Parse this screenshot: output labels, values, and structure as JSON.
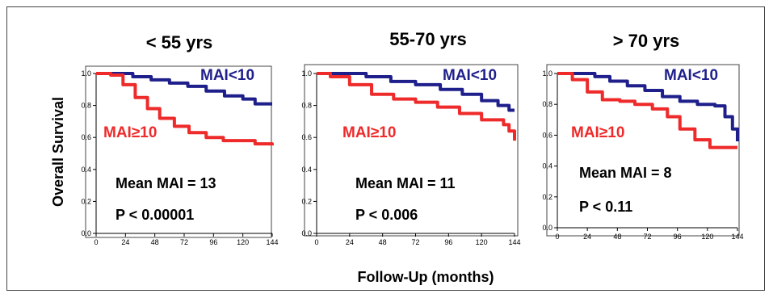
{
  "colors": {
    "mai_lt10": "#1f1f8c",
    "mai_ge10": "#ee2a2a",
    "axis": "#000000",
    "frame": "#444444"
  },
  "ylabel": "Overall Survival",
  "xlabel": "Follow-Up (months)",
  "chart_data": [
    {
      "type": "line",
      "title": "< 55 yrs",
      "xlim": [
        0,
        144
      ],
      "ylim": [
        0.0,
        1.0
      ],
      "x_ticks": [
        "0",
        "24",
        "48",
        "72",
        "96",
        "120",
        "144"
      ],
      "y_ticks": [
        "0.0",
        "0.2",
        "0.4",
        "0.6",
        "0.8",
        "1.0"
      ],
      "series": [
        {
          "name": "MAI<10",
          "color": "#1f1f8c",
          "points": [
            [
              0,
              1.0
            ],
            [
              18,
              1.0
            ],
            [
              30,
              0.98
            ],
            [
              45,
              0.96
            ],
            [
              60,
              0.94
            ],
            [
              75,
              0.92
            ],
            [
              90,
              0.89
            ],
            [
              105,
              0.86
            ],
            [
              120,
              0.84
            ],
            [
              130,
              0.81
            ],
            [
              144,
              0.81
            ]
          ]
        },
        {
          "name": "MAI≥10",
          "color": "#ee2a2a",
          "points": [
            [
              0,
              1.0
            ],
            [
              12,
              0.99
            ],
            [
              22,
              0.93
            ],
            [
              32,
              0.85
            ],
            [
              42,
              0.78
            ],
            [
              52,
              0.72
            ],
            [
              64,
              0.67
            ],
            [
              76,
              0.63
            ],
            [
              90,
              0.6
            ],
            [
              104,
              0.58
            ],
            [
              120,
              0.58
            ],
            [
              130,
              0.56
            ],
            [
              144,
              0.55
            ]
          ]
        }
      ],
      "annotations": [
        "Mean MAI = 13",
        "P < 0.00001"
      ]
    },
    {
      "type": "line",
      "title": "55-70 yrs",
      "xlim": [
        0,
        144
      ],
      "ylim": [
        0.0,
        1.0
      ],
      "x_ticks": [
        "0",
        "24",
        "48",
        "72",
        "96",
        "120",
        "144"
      ],
      "y_ticks": [
        "0.0",
        "0.2",
        "0.4",
        "0.6",
        "0.8",
        "1.0"
      ],
      "series": [
        {
          "name": "MAI<10",
          "color": "#1f1f8c",
          "points": [
            [
              0,
              1.0
            ],
            [
              20,
              1.0
            ],
            [
              36,
              0.98
            ],
            [
              54,
              0.95
            ],
            [
              72,
              0.93
            ],
            [
              90,
              0.9
            ],
            [
              106,
              0.87
            ],
            [
              120,
              0.83
            ],
            [
              132,
              0.8
            ],
            [
              140,
              0.77
            ],
            [
              144,
              0.77
            ]
          ]
        },
        {
          "name": "MAI≥10",
          "color": "#ee2a2a",
          "points": [
            [
              0,
              1.0
            ],
            [
              10,
              0.98
            ],
            [
              24,
              0.93
            ],
            [
              40,
              0.87
            ],
            [
              56,
              0.84
            ],
            [
              72,
              0.82
            ],
            [
              88,
              0.79
            ],
            [
              104,
              0.75
            ],
            [
              120,
              0.71
            ],
            [
              136,
              0.68
            ],
            [
              140,
              0.64
            ],
            [
              144,
              0.58
            ]
          ]
        }
      ],
      "annotations": [
        "Mean MAI = 11",
        "P < 0.006"
      ]
    },
    {
      "type": "line",
      "title": "> 70 yrs",
      "xlim": [
        0,
        144
      ],
      "ylim": [
        0.0,
        1.0
      ],
      "x_ticks": [
        "0",
        "24",
        "48",
        "72",
        "96",
        "120",
        "144"
      ],
      "y_ticks": [
        "0.0",
        "0.2",
        "0.4",
        "0.6",
        "0.8",
        "1.0"
      ],
      "series": [
        {
          "name": "MAI<10",
          "color": "#1f1f8c",
          "points": [
            [
              0,
              1.0
            ],
            [
              18,
              1.0
            ],
            [
              30,
              0.98
            ],
            [
              42,
              0.95
            ],
            [
              56,
              0.92
            ],
            [
              70,
              0.89
            ],
            [
              84,
              0.85
            ],
            [
              98,
              0.82
            ],
            [
              112,
              0.8
            ],
            [
              126,
              0.79
            ],
            [
              134,
              0.72
            ],
            [
              140,
              0.64
            ],
            [
              144,
              0.56
            ]
          ]
        },
        {
          "name": "MAI≥10",
          "color": "#ee2a2a",
          "points": [
            [
              0,
              1.0
            ],
            [
              12,
              0.96
            ],
            [
              24,
              0.88
            ],
            [
              36,
              0.83
            ],
            [
              50,
              0.82
            ],
            [
              62,
              0.8
            ],
            [
              76,
              0.77
            ],
            [
              88,
              0.72
            ],
            [
              98,
              0.64
            ],
            [
              110,
              0.57
            ],
            [
              122,
              0.52
            ],
            [
              144,
              0.52
            ]
          ]
        }
      ],
      "annotations": [
        "Mean MAI = 8",
        "P < 0.11"
      ]
    }
  ]
}
